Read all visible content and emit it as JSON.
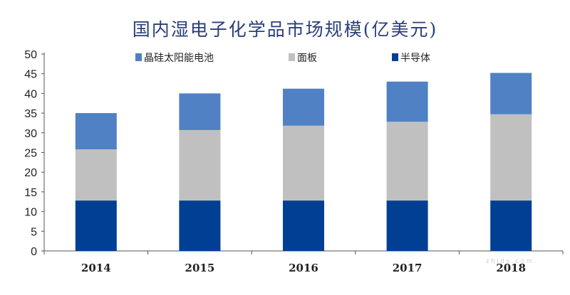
{
  "chart_data": {
    "type": "bar",
    "stacked": true,
    "title": "国内湿电子化学品市场规模(亿美元)",
    "categories": [
      "2014",
      "2015",
      "2016",
      "2017",
      "2018"
    ],
    "series": [
      {
        "name": "半导体",
        "color": "#003f94",
        "values": [
          12.8,
          12.8,
          12.8,
          12.8,
          12.8
        ]
      },
      {
        "name": "面板",
        "color": "#c0c0c0",
        "values": [
          13,
          17.9,
          19,
          20,
          21.9
        ]
      },
      {
        "name": "晶硅太阳能电池",
        "color": "#4f81c4",
        "values": [
          9.2,
          9.3,
          9.4,
          10.2,
          10.5
        ]
      }
    ],
    "legend_order": [
      "晶硅太阳能电池",
      "面板",
      "半导体"
    ],
    "legend_position": "top",
    "ylim": [
      0,
      50
    ],
    "yticks": [
      0,
      5,
      10,
      15,
      20,
      25,
      30,
      35,
      40,
      45,
      50
    ],
    "grid": false,
    "xlabel": "",
    "ylabel": ""
  },
  "watermark": "zhidx.com"
}
